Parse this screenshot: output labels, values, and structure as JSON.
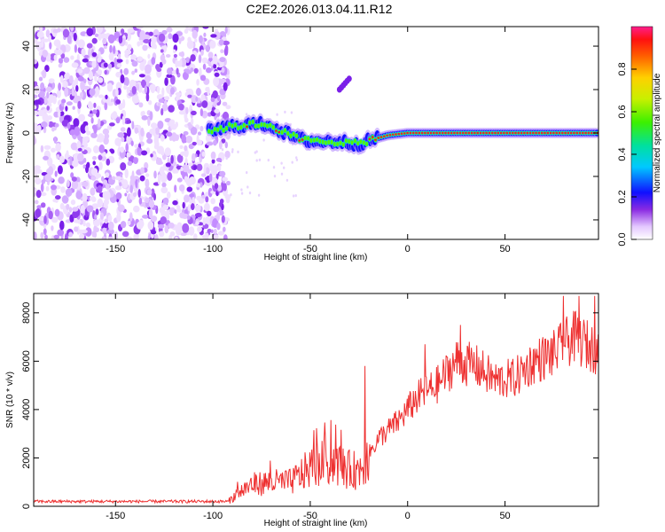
{
  "title": "C2E2.2026.013.04.11.R12",
  "colors": {
    "snr_line": "#ee3030",
    "axis": "#000000",
    "scatter_purple": "#7a1fe8",
    "track_red": "#e8202a",
    "track_green": "#58f000",
    "track_blue": "#1010ff"
  },
  "chart_data": [
    {
      "type": "heatmap",
      "name": "spectrogram",
      "xlabel": "Height of straight line (km)",
      "ylabel": "Frequency (Hz)",
      "xlim": [
        -192,
        98
      ],
      "ylim": [
        -49,
        49
      ],
      "xticks": [
        -150,
        -100,
        -50,
        0,
        50
      ],
      "yticks": [
        -40,
        -20,
        0,
        20,
        40
      ],
      "noise_region_x": [
        -192,
        -96
      ],
      "signal_track": [
        {
          "x": -102,
          "y": 1
        },
        {
          "x": -90,
          "y": 3
        },
        {
          "x": -80,
          "y": 4
        },
        {
          "x": -72,
          "y": 4
        },
        {
          "x": -65,
          "y": 1
        },
        {
          "x": -55,
          "y": -3
        },
        {
          "x": -45,
          "y": -4
        },
        {
          "x": -35,
          "y": -4
        },
        {
          "x": -25,
          "y": -5
        },
        {
          "x": -18,
          "y": -3
        },
        {
          "x": -10,
          "y": -1
        },
        {
          "x": 0,
          "y": 0
        },
        {
          "x": 20,
          "y": 0
        },
        {
          "x": 50,
          "y": 0
        },
        {
          "x": 98,
          "y": 0
        }
      ],
      "side_blob": {
        "x": -35,
        "y": 20
      },
      "colorbar": {
        "label": "Normalized spectral amplitude",
        "ticks": [
          "0.0",
          "0.2",
          "0.4",
          "0.6",
          "0.8"
        ],
        "tick_values": [
          0,
          0.2,
          0.4,
          0.6,
          0.8
        ],
        "range": [
          0,
          1
        ]
      }
    },
    {
      "type": "line",
      "name": "snr",
      "xlabel": "Height of straight line (km)",
      "ylabel": "SNR (10 * v/v)",
      "xlim": [
        -192,
        98
      ],
      "ylim": [
        0,
        8800
      ],
      "xticks": [
        -150,
        -100,
        -50,
        0,
        50
      ],
      "yticks": [
        0,
        2000,
        4000,
        6000,
        8000
      ],
      "trend": [
        {
          "x": -192,
          "y": 200
        },
        {
          "x": -92,
          "y": 200
        },
        {
          "x": -88,
          "y": 500
        },
        {
          "x": -80,
          "y": 900
        },
        {
          "x": -70,
          "y": 1000
        },
        {
          "x": -60,
          "y": 1000
        },
        {
          "x": -50,
          "y": 1600
        },
        {
          "x": -40,
          "y": 1900
        },
        {
          "x": -30,
          "y": 1500
        },
        {
          "x": -25,
          "y": 1500
        },
        {
          "x": -15,
          "y": 2800
        },
        {
          "x": -5,
          "y": 3500
        },
        {
          "x": 5,
          "y": 4500
        },
        {
          "x": 15,
          "y": 5000
        },
        {
          "x": 25,
          "y": 6000
        },
        {
          "x": 35,
          "y": 5800
        },
        {
          "x": 45,
          "y": 5200
        },
        {
          "x": 55,
          "y": 5300
        },
        {
          "x": 65,
          "y": 6000
        },
        {
          "x": 75,
          "y": 6300
        },
        {
          "x": 85,
          "y": 7000
        },
        {
          "x": 98,
          "y": 6400
        }
      ],
      "spikes": [
        {
          "x": -37,
          "y": 5400
        },
        {
          "x": -22,
          "y": 5800
        },
        {
          "x": 9,
          "y": 6700
        },
        {
          "x": 27,
          "y": 7500
        },
        {
          "x": 80,
          "y": 8700
        },
        {
          "x": 88,
          "y": 8700
        },
        {
          "x": 96,
          "y": 8700
        }
      ]
    }
  ]
}
